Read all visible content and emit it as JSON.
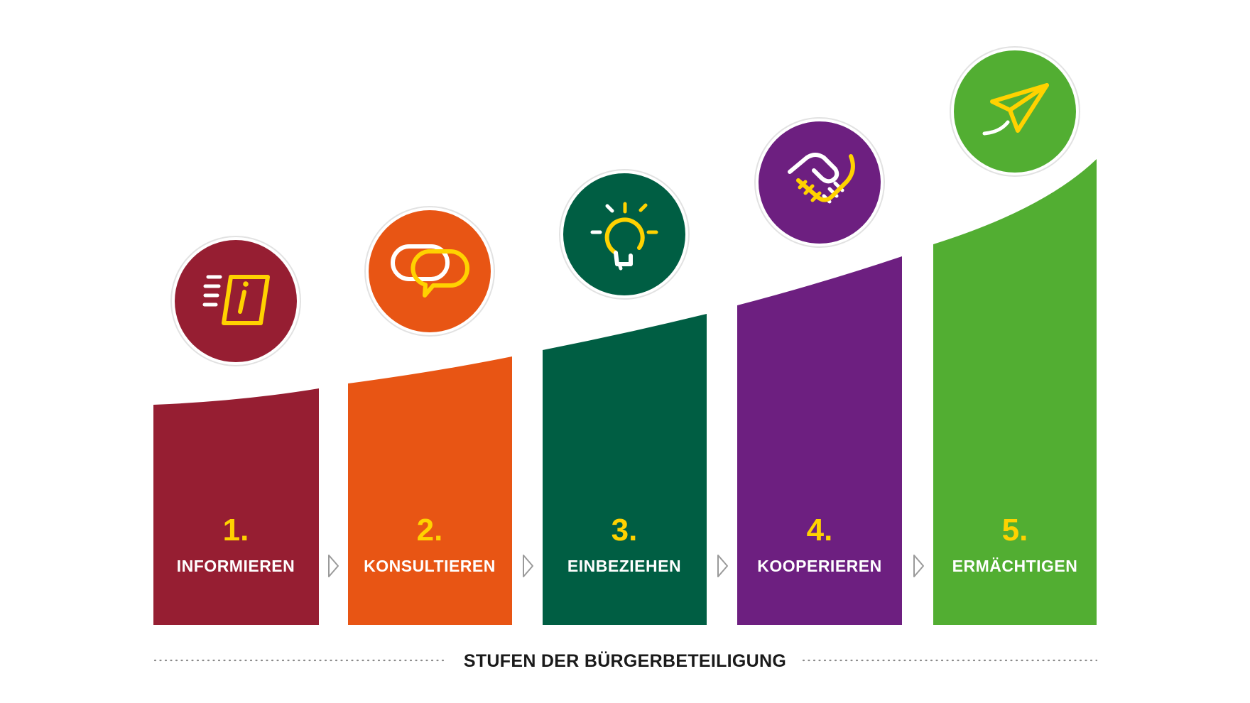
{
  "colors": {
    "accent_yellow": "#ffd200",
    "white": "#ffffff",
    "text_dark": "#1a1a1a",
    "dots": "#8a8a8a"
  },
  "steps": [
    {
      "number": "1.",
      "label": "INFORMIEREN",
      "color": "#961e32",
      "icon": "info-icon"
    },
    {
      "number": "2.",
      "label": "KONSULTIEREN",
      "color": "#e85514",
      "icon": "speech-bubbles-icon"
    },
    {
      "number": "3.",
      "label": "EINBEZIEHEN",
      "color": "#005e43",
      "icon": "lightbulb-icon"
    },
    {
      "number": "4.",
      "label": "KOOPERIEREN",
      "color": "#6d1f80",
      "icon": "handshake-icon"
    },
    {
      "number": "5.",
      "label": "ERMÄCHTIGEN",
      "color": "#52ae32",
      "icon": "paper-plane-icon"
    }
  ],
  "arrow_icon": "chevron-right-icon",
  "footer": {
    "title": "STUFEN DER BÜRGERBETEILIGUNG"
  }
}
